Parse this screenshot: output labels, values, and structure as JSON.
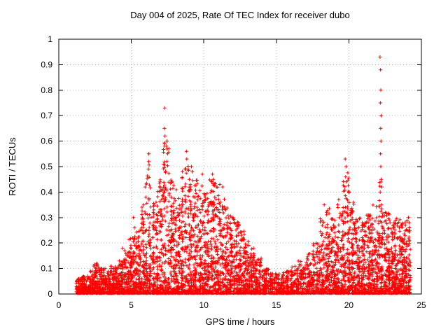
{
  "chart_data": {
    "type": "scatter",
    "title": "Day 004 of 2025, Rate Of TEC Index for receiver dubo",
    "xlabel": "GPS time / hours",
    "ylabel": "ROTI / TECUs",
    "xlim": [
      0,
      25
    ],
    "ylim": [
      0,
      1
    ],
    "xticks": [
      0,
      5,
      10,
      15,
      20,
      25
    ],
    "xtick_labels": [
      "0",
      "5",
      "10",
      "15",
      "20",
      "25"
    ],
    "yticks": [
      0,
      0.1,
      0.2,
      0.3,
      0.4,
      0.5,
      0.6,
      0.7,
      0.8,
      0.9,
      1
    ],
    "ytick_labels": [
      "0",
      "0.1",
      "0.2",
      "0.3",
      "0.4",
      "0.5",
      "0.6",
      "0.7",
      "0.8",
      "0.9",
      "1"
    ],
    "grid": true,
    "legend": "none",
    "marker": "plus",
    "marker_color": "#ff0000",
    "grid_color": "#b8b8b8",
    "axis_color": "#000000",
    "scatter_bins_format": "[x_start_hours, x_end_hours, point_count, max_roti_tecus] - dense scatter envelope read from the plot; points concentrate near 0 with vertical streaks up to max",
    "scatter_bins": [
      [
        1.2,
        1.6,
        70,
        0.06
      ],
      [
        1.6,
        2.0,
        80,
        0.07
      ],
      [
        2.0,
        2.4,
        80,
        0.09
      ],
      [
        2.4,
        2.8,
        85,
        0.12
      ],
      [
        2.8,
        3.2,
        85,
        0.1
      ],
      [
        3.2,
        3.6,
        85,
        0.09
      ],
      [
        3.6,
        4.0,
        90,
        0.11
      ],
      [
        4.0,
        4.4,
        90,
        0.13
      ],
      [
        4.4,
        4.8,
        95,
        0.18
      ],
      [
        4.8,
        5.2,
        95,
        0.22
      ],
      [
        5.2,
        5.6,
        100,
        0.26
      ],
      [
        5.6,
        6.0,
        100,
        0.35
      ],
      [
        6.0,
        6.4,
        105,
        0.52
      ],
      [
        6.4,
        6.8,
        105,
        0.36
      ],
      [
        6.8,
        7.2,
        105,
        0.45
      ],
      [
        7.2,
        7.6,
        110,
        0.62
      ],
      [
        7.6,
        8.0,
        110,
        0.45
      ],
      [
        8.0,
        8.4,
        110,
        0.42
      ],
      [
        8.4,
        8.8,
        110,
        0.5
      ],
      [
        8.8,
        9.2,
        110,
        0.52
      ],
      [
        9.2,
        9.6,
        110,
        0.45
      ],
      [
        9.6,
        10.0,
        110,
        0.43
      ],
      [
        10.0,
        10.4,
        110,
        0.4
      ],
      [
        10.4,
        10.8,
        110,
        0.45
      ],
      [
        10.8,
        11.2,
        110,
        0.42
      ],
      [
        11.2,
        11.6,
        105,
        0.38
      ],
      [
        11.6,
        12.0,
        105,
        0.33
      ],
      [
        12.0,
        12.4,
        100,
        0.3
      ],
      [
        12.4,
        12.8,
        95,
        0.26
      ],
      [
        12.8,
        13.2,
        90,
        0.22
      ],
      [
        13.2,
        13.6,
        85,
        0.18
      ],
      [
        13.6,
        14.0,
        80,
        0.14
      ],
      [
        14.0,
        14.5,
        80,
        0.1
      ],
      [
        14.5,
        15.0,
        75,
        0.08
      ],
      [
        15.0,
        15.5,
        75,
        0.08
      ],
      [
        15.5,
        16.0,
        75,
        0.09
      ],
      [
        16.0,
        16.5,
        80,
        0.11
      ],
      [
        16.5,
        17.0,
        80,
        0.13
      ],
      [
        17.0,
        17.5,
        85,
        0.16
      ],
      [
        17.5,
        18.0,
        90,
        0.2
      ],
      [
        18.0,
        18.4,
        95,
        0.3
      ],
      [
        18.4,
        18.8,
        95,
        0.34
      ],
      [
        18.8,
        19.2,
        95,
        0.3
      ],
      [
        19.2,
        19.6,
        95,
        0.35
      ],
      [
        19.6,
        20.0,
        100,
        0.48
      ],
      [
        20.0,
        20.4,
        100,
        0.36
      ],
      [
        20.4,
        20.8,
        100,
        0.3
      ],
      [
        20.8,
        21.2,
        100,
        0.28
      ],
      [
        21.2,
        21.6,
        100,
        0.32
      ],
      [
        21.6,
        22.0,
        105,
        0.35
      ],
      [
        22.0,
        22.4,
        105,
        0.45
      ],
      [
        22.4,
        22.8,
        105,
        0.32
      ],
      [
        22.8,
        23.2,
        105,
        0.28
      ],
      [
        23.2,
        23.6,
        105,
        0.3
      ],
      [
        23.6,
        24.0,
        105,
        0.28
      ],
      [
        24.0,
        24.25,
        65,
        0.3
      ]
    ],
    "outliers_format": "[gps_time_hours, roti_tecus] - distinct high points visible in the plot",
    "outliers": [
      [
        5.15,
        0.3
      ],
      [
        5.95,
        0.42
      ],
      [
        6.0,
        0.38
      ],
      [
        6.2,
        0.55
      ],
      [
        6.2,
        0.52
      ],
      [
        6.18,
        0.49
      ],
      [
        7.3,
        0.73
      ],
      [
        7.28,
        0.65
      ],
      [
        7.32,
        0.62
      ],
      [
        7.3,
        0.58
      ],
      [
        7.5,
        0.55
      ],
      [
        7.45,
        0.52
      ],
      [
        8.8,
        0.56
      ],
      [
        8.82,
        0.53
      ],
      [
        9.15,
        0.5
      ],
      [
        9.2,
        0.48
      ],
      [
        9.9,
        0.47
      ],
      [
        10.6,
        0.47
      ],
      [
        10.55,
        0.44
      ],
      [
        11.1,
        0.43
      ],
      [
        11.3,
        0.42
      ],
      [
        18.3,
        0.35
      ],
      [
        19.3,
        0.37
      ],
      [
        19.75,
        0.53
      ],
      [
        19.8,
        0.5
      ],
      [
        19.78,
        0.46
      ],
      [
        19.82,
        0.44
      ],
      [
        20.0,
        0.4
      ],
      [
        22.15,
        0.93
      ],
      [
        22.18,
        0.88
      ],
      [
        22.2,
        0.8
      ],
      [
        22.17,
        0.75
      ],
      [
        22.22,
        0.7
      ],
      [
        22.19,
        0.65
      ],
      [
        22.21,
        0.6
      ],
      [
        22.18,
        0.55
      ],
      [
        22.2,
        0.5
      ],
      [
        22.23,
        0.45
      ],
      [
        22.16,
        0.4
      ],
      [
        22.25,
        0.35
      ],
      [
        23.9,
        0.27
      ],
      [
        24.1,
        0.3
      ],
      [
        24.15,
        0.28
      ]
    ],
    "data_time_range_hours": [
      1.3,
      24.25
    ]
  }
}
